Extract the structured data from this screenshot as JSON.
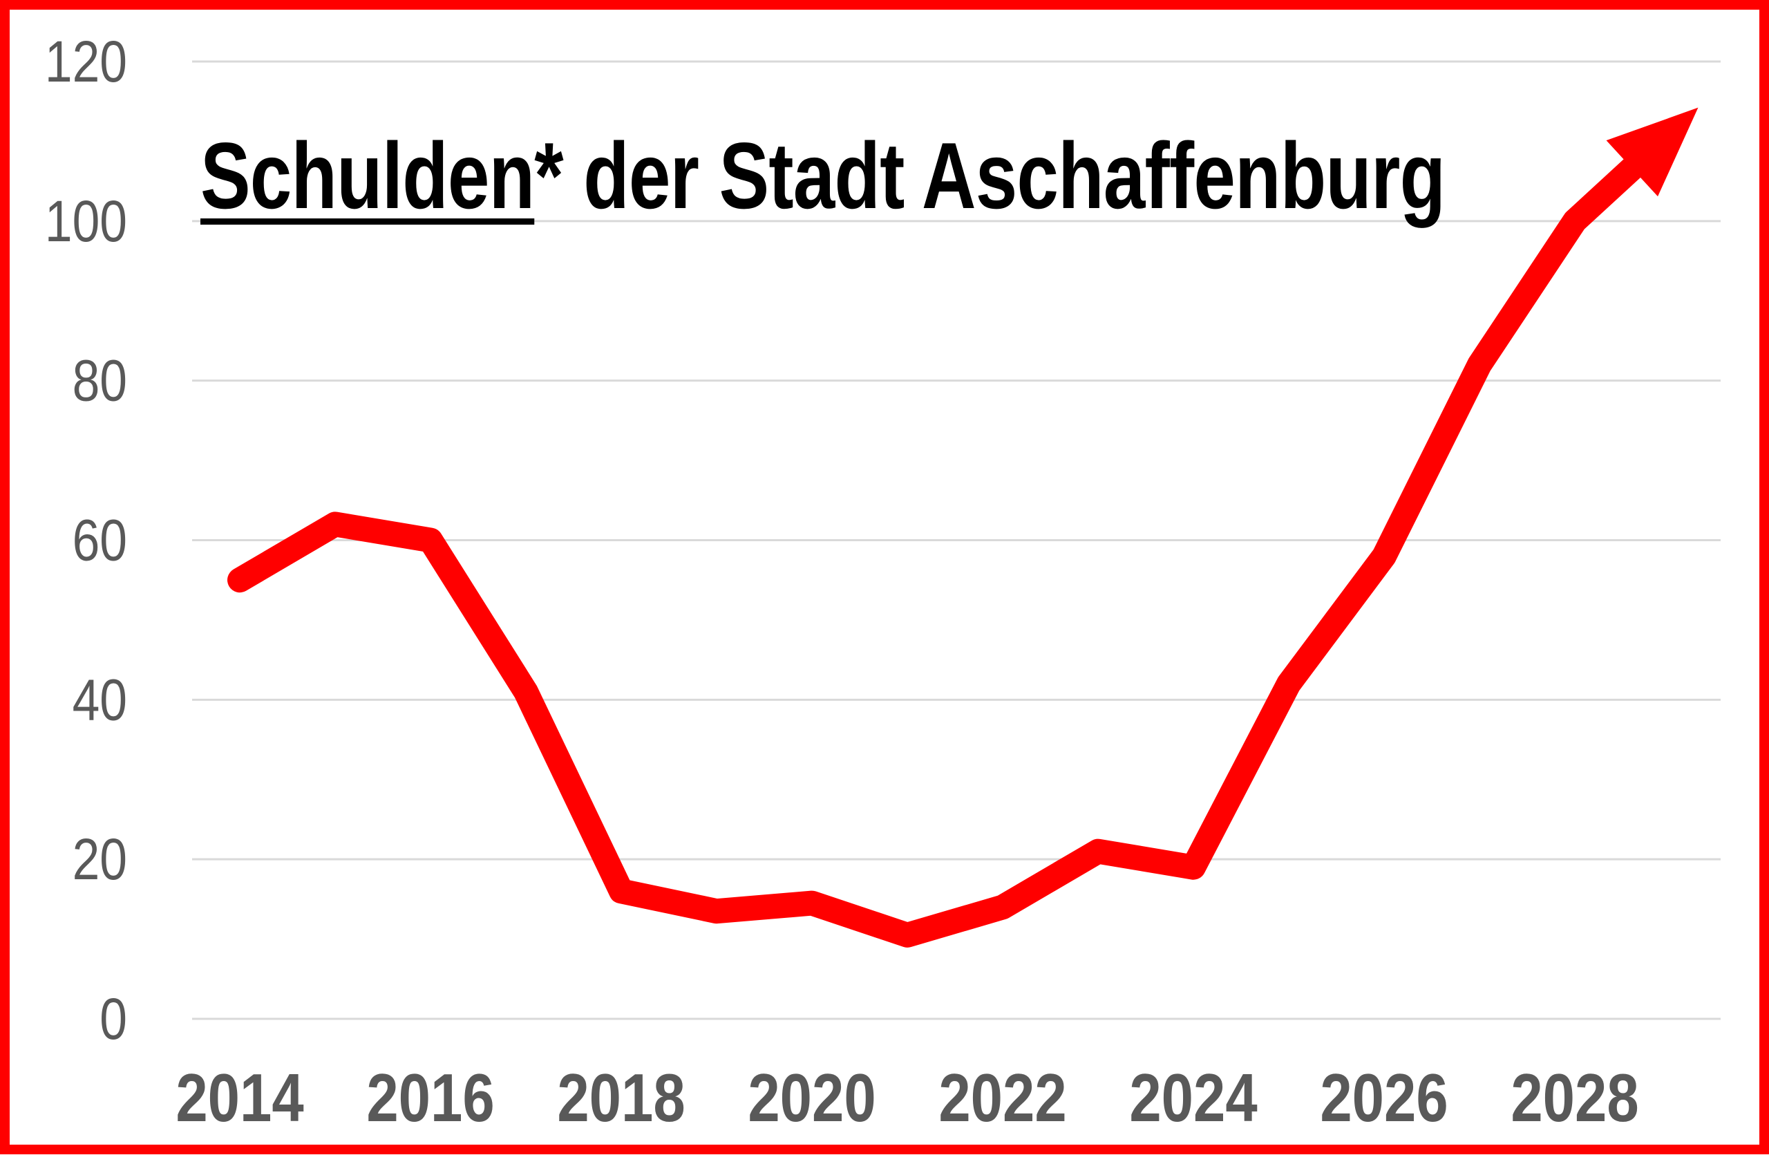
{
  "title": {
    "underlined": "Schulden",
    "rest": "* der Stadt Aschaffenburg",
    "full": "Schulden* der Stadt Aschaffenburg"
  },
  "colors": {
    "line_red": "#ff0000",
    "border_red": "#ff0000",
    "gridline_gray": "#d9d9d9",
    "tick_label_gray": "#595959",
    "title_black": "#000000",
    "background": "#ffffff"
  },
  "chart_data": {
    "type": "line",
    "title": "Schulden* der Stadt Aschaffenburg",
    "x": [
      2014,
      2015,
      2016,
      2017,
      2018,
      2019,
      2020,
      2021,
      2022,
      2023,
      2024,
      2025,
      2026,
      2027,
      2028,
      2029
    ],
    "values": [
      55,
      62,
      60,
      41,
      16,
      13.5,
      14.5,
      10.5,
      14,
      21,
      19,
      42,
      58,
      82,
      100,
      111
    ],
    "series_note": "single red series, line ends in an arrow head pointing up-right; last point (2029) has no axis label",
    "x_tick_years": [
      2014,
      2016,
      2018,
      2020,
      2022,
      2024,
      2026,
      2028
    ],
    "x_tick_labels": [
      "2014",
      "2016",
      "2018",
      "2020",
      "2022",
      "2024",
      "2026",
      "2028"
    ],
    "y_ticks": [
      0,
      20,
      40,
      60,
      80,
      100,
      120
    ],
    "y_tick_labels": [
      "0",
      "20",
      "40",
      "60",
      "80",
      "100",
      "120"
    ],
    "ylim": [
      0,
      120
    ],
    "xlabel": "",
    "ylabel": "",
    "grid": "horizontal-only",
    "legend": "none",
    "line": {
      "color": "#ff0000",
      "ends_with_arrow": true
    }
  }
}
